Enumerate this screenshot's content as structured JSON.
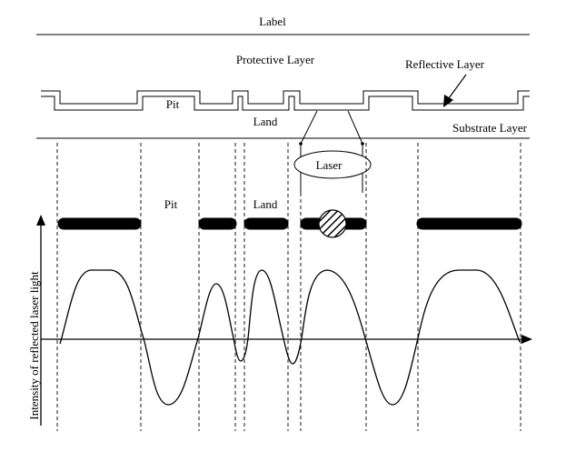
{
  "labels": {
    "label": "Label",
    "protective_layer": "Protective Layer",
    "reflective_layer": "Reflective Layer",
    "pit_top": "Pit",
    "land_top": "Land",
    "substrate_layer": "Substrate Layer",
    "laser": "Laser",
    "pit_track": "Pit",
    "land_track": "Land",
    "y_axis": "Intensity of reflected laser light"
  },
  "colors": {
    "ink": "#000000",
    "background": "#ffffff"
  }
}
